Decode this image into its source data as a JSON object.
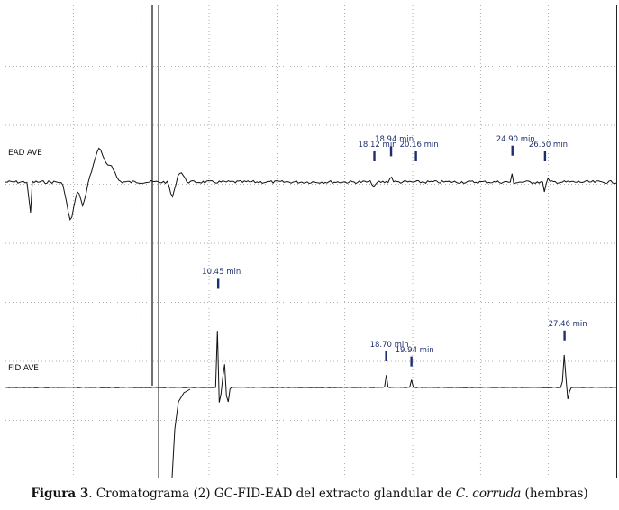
{
  "chart_data": {
    "type": "line",
    "title": "",
    "xlabel": "",
    "ylabel": "",
    "grid": true,
    "series": [
      {
        "name": "EAD AVE",
        "features": [
          {
            "t": 1.2,
            "h": -4.0,
            "w": 0.05
          },
          {
            "t": 3.2,
            "h": -3.0,
            "w": 0.25
          },
          {
            "t": 3.8,
            "h": -1.8,
            "w": 0.2
          },
          {
            "t": 4.6,
            "h": 2.6,
            "w": 0.35
          },
          {
            "t": 5.2,
            "h": 1.2,
            "w": 0.25
          },
          {
            "t": 8.2,
            "h": -1.2,
            "w": 0.15
          },
          {
            "t": 8.6,
            "h": 0.8,
            "w": 0.2
          },
          {
            "t": 18.12,
            "h": -0.4,
            "w": 0.1
          },
          {
            "t": 18.94,
            "h": 0.4,
            "w": 0.1
          },
          {
            "t": 24.9,
            "h": 1.3,
            "w": 0.05
          },
          {
            "t": 24.92,
            "h": -1.0,
            "w": 0.05
          },
          {
            "t": 26.5,
            "h": -0.8,
            "w": 0.08
          },
          {
            "t": 26.6,
            "h": 0.5,
            "w": 0.06
          }
        ],
        "markers": [
          {
            "label": "18.12 min",
            "t": 18.12
          },
          {
            "label": "18.94 min",
            "t": 18.94
          },
          {
            "label": "20.16 min",
            "t": 20.16
          },
          {
            "label": "24.90 min",
            "t": 24.9
          },
          {
            "label": "26.50 min",
            "t": 26.5
          }
        ]
      },
      {
        "name": "FID AVE",
        "features": [
          {
            "t": 10.45,
            "h": 9.0,
            "w": 0.05
          },
          {
            "t": 10.5,
            "h": -4.5,
            "w": 0.06
          },
          {
            "t": 10.75,
            "h": 2.0,
            "w": 0.08
          },
          {
            "t": 10.9,
            "h": -1.5,
            "w": 0.08
          },
          {
            "t": 18.7,
            "h": 1.0,
            "w": 0.05
          },
          {
            "t": 19.94,
            "h": 0.6,
            "w": 0.05
          },
          {
            "t": 27.46,
            "h": 2.8,
            "w": 0.08
          },
          {
            "t": 27.6,
            "h": -1.0,
            "w": 0.1
          }
        ],
        "markers": [
          {
            "label": "10.45 min",
            "t": 10.45
          },
          {
            "label": "18.70 min",
            "t": 18.7
          },
          {
            "label": "19.94 min",
            "t": 19.94
          },
          {
            "label": "27.46 min",
            "t": 27.46
          }
        ]
      }
    ],
    "xlim": [
      0,
      30
    ]
  },
  "caption": {
    "figure_label": "Figura 3",
    "text_before": ". Cromatograma (2) GC-FID-EAD del extracto glandular de ",
    "species": "C. corruda",
    "text_after": " (hembras)"
  }
}
